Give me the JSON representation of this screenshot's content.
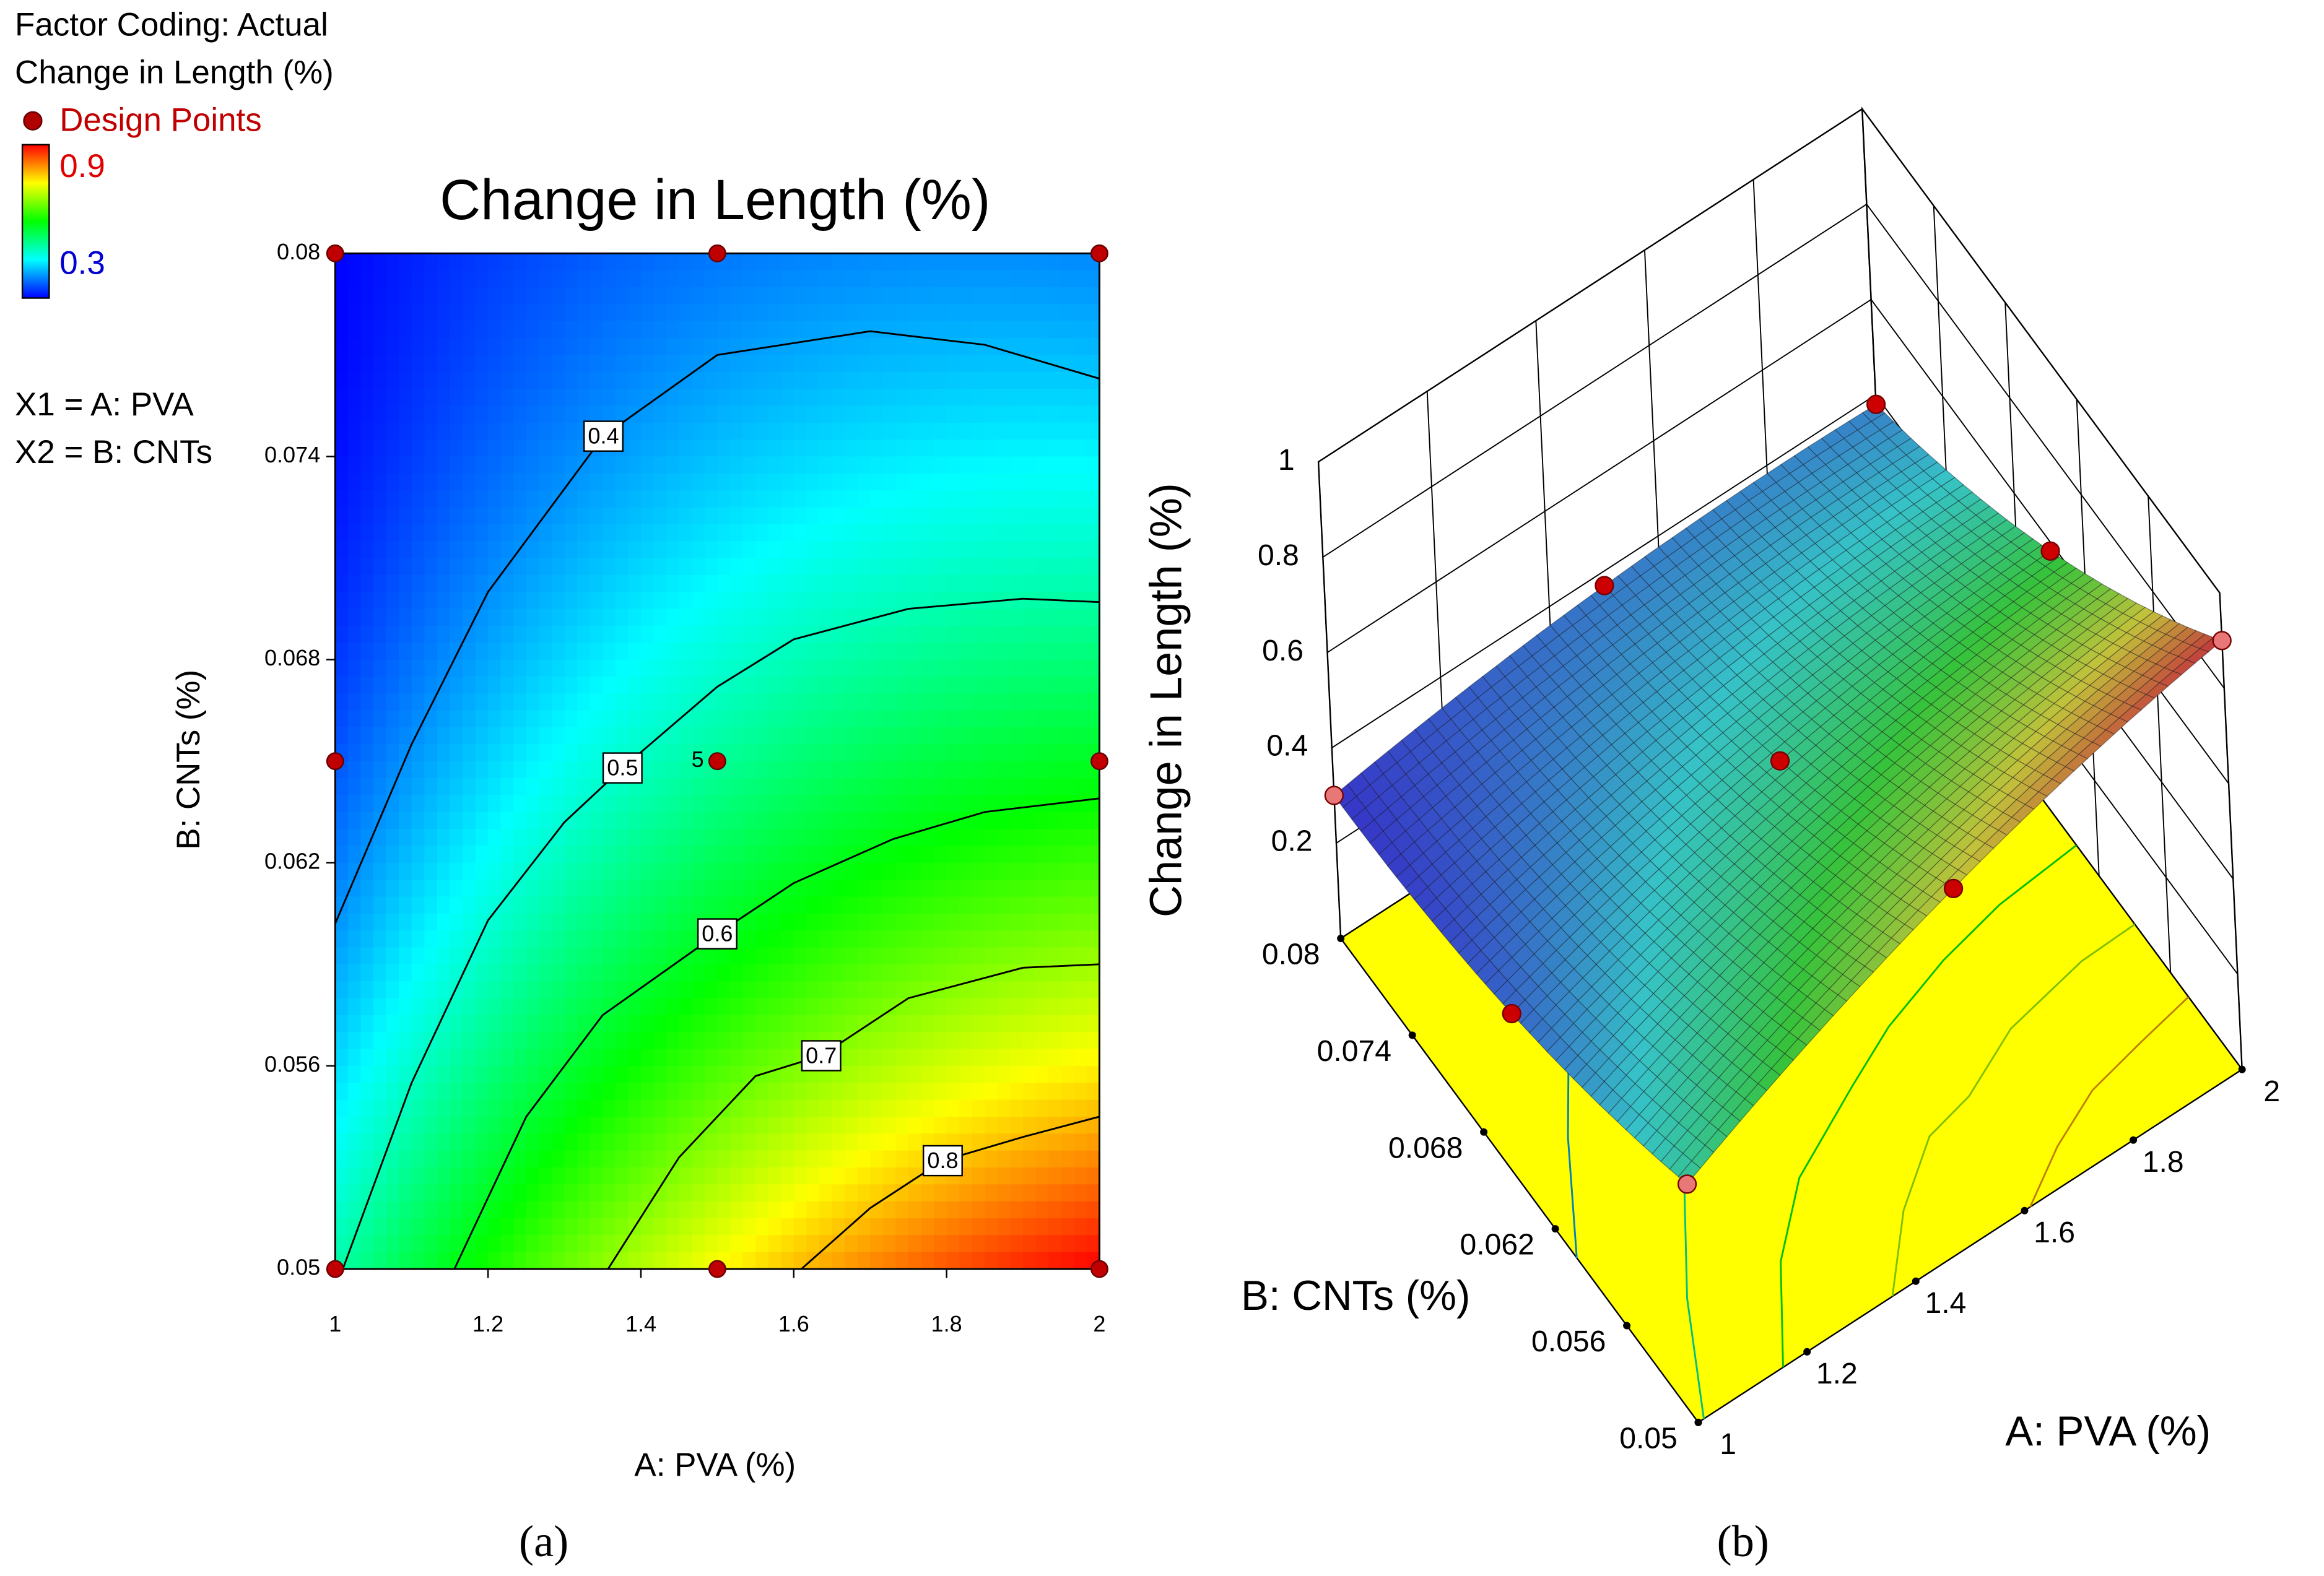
{
  "chart_data": [
    {
      "type": "contour",
      "title": "Change in Length (%)",
      "legend_title": "Factor Coding: Actual",
      "response": "Change in Length (%)",
      "legend_points": "Design Points",
      "colorbar_ticks": [
        0.9,
        0.3
      ],
      "factors": [
        "X1 = A: PVA",
        "X2 = B: CNTs"
      ],
      "xlabel": "A: PVA (%)",
      "ylabel": "B: CNTs (%)",
      "xlim": [
        1,
        2
      ],
      "xticks": [
        1,
        1.2,
        1.4,
        1.6,
        1.8,
        2
      ],
      "ylim": [
        0.05,
        0.08
      ],
      "yticks": [
        0.05,
        0.056,
        0.062,
        0.068,
        0.074,
        0.08
      ],
      "points": {
        "x": [
          1,
          1.5,
          2,
          1,
          1.5,
          2,
          1,
          1.5,
          2
        ],
        "y": [
          0.08,
          0.08,
          0.08,
          0.065,
          0.065,
          0.065,
          0.05,
          0.05,
          0.05
        ]
      },
      "replicates_label": "5",
      "contours": [
        {
          "level": 0.4,
          "x": [
            1,
            1.1,
            1.2,
            1.351,
            1.5,
            1.7,
            1.85,
            2
          ],
          "y": [
            0.0602,
            0.0655,
            0.07,
            0.0746,
            0.077,
            0.0777,
            0.0773,
            0.0763
          ]
        },
        {
          "level": 0.5,
          "x": [
            1.01,
            1.1,
            1.2,
            1.3,
            1.376,
            1.5,
            1.6,
            1.75,
            1.9,
            2
          ],
          "y": [
            0.05,
            0.0555,
            0.0603,
            0.0632,
            0.0648,
            0.0672,
            0.0686,
            0.0695,
            0.0698,
            0.0697
          ]
        },
        {
          "level": 0.6,
          "x": [
            1.156,
            1.25,
            1.35,
            1.5,
            1.6,
            1.73,
            1.85,
            2
          ],
          "y": [
            0.05,
            0.0545,
            0.0575,
            0.0599,
            0.0614,
            0.0627,
            0.0635,
            0.0639
          ]
        },
        {
          "level": 0.7,
          "x": [
            1.357,
            1.45,
            1.55,
            1.636,
            1.75,
            1.9,
            2
          ],
          "y": [
            0.05,
            0.0533,
            0.0557,
            0.0563,
            0.058,
            0.0589,
            0.059
          ]
        },
        {
          "level": 0.8,
          "x": [
            1.61,
            1.7,
            1.795,
            1.9,
            2
          ],
          "y": [
            0.05,
            0.0518,
            0.0532,
            0.0539,
            0.0545
          ]
        }
      ],
      "caption": "(a)"
    },
    {
      "type": "surface",
      "xlabel": "A: PVA (%)",
      "ylabel": "B: CNTs (%)",
      "zlabel": "Change in Length (%)",
      "xlim": [
        1,
        2
      ],
      "xticks": [
        1,
        1.2,
        1.4,
        1.6,
        1.8,
        2
      ],
      "ylim": [
        0.05,
        0.08
      ],
      "yticks": [
        0.05,
        0.056,
        0.062,
        0.068,
        0.074,
        0.08
      ],
      "zlim": [
        0,
        1
      ],
      "zticks": [
        0.2,
        0.4,
        0.6,
        0.8,
        1
      ],
      "series": [
        {
          "name": "Design Points",
          "x": [
            1,
            1.5,
            2,
            1,
            1.5,
            2,
            1,
            1.5,
            2
          ],
          "y": [
            0.08,
            0.08,
            0.08,
            0.065,
            0.065,
            0.065,
            0.05,
            0.05,
            0.05
          ],
          "z": [
            0.3,
            0.37,
            0.38,
            0.35,
            0.51,
            0.58,
            0.5,
            0.75,
            0.9
          ],
          "colors": [
            "#e87878",
            "#cc0000",
            "#cc0000",
            "#cc0000",
            "#cc0000",
            "#cc0000",
            "#e87878",
            "#cc0000",
            "#e87878"
          ]
        }
      ],
      "floor_color": "#ffff00",
      "caption": "(b)"
    }
  ]
}
